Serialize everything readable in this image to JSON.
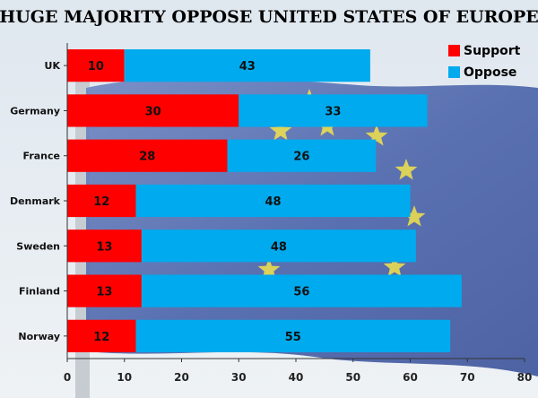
{
  "chart_data": {
    "type": "bar",
    "orientation": "horizontal",
    "stacked": true,
    "title": "HUGE MAJORITY OPPOSE UNITED STATES OF EUROPE",
    "categories": [
      "UK",
      "Germany",
      "France",
      "Denmark",
      "Sweden",
      "Finland",
      "Norway"
    ],
    "series": [
      {
        "name": "Support",
        "color": "#ff0000",
        "values": [
          10,
          30,
          28,
          12,
          13,
          13,
          12
        ]
      },
      {
        "name": "Oppose",
        "color": "#00aaee",
        "values": [
          43,
          33,
          26,
          48,
          48,
          56,
          55
        ]
      }
    ],
    "xlim": [
      0,
      80
    ],
    "xticks": [
      "0",
      "10",
      "20",
      "30",
      "40",
      "50",
      "60",
      "70",
      "80"
    ],
    "legend_position": "top-right",
    "grid": false
  }
}
